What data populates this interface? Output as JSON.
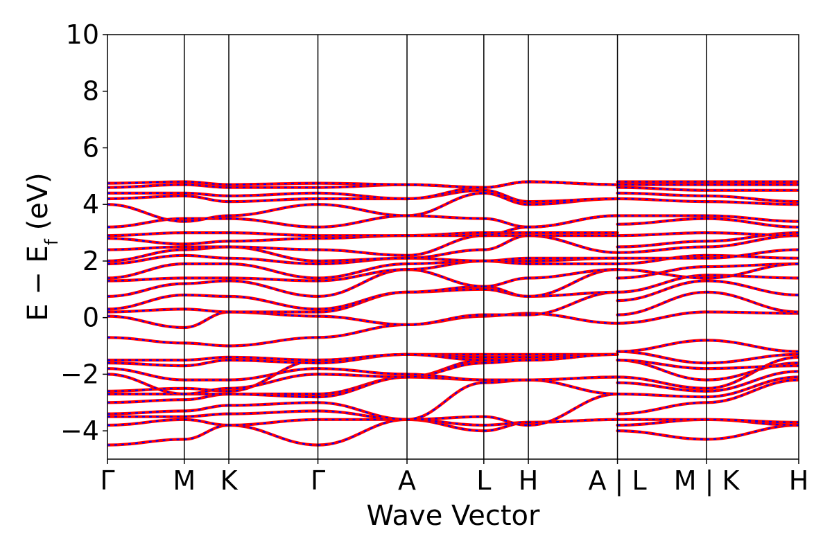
{
  "chart_data": {
    "type": "line",
    "title": "",
    "xlabel": "Wave Vector",
    "ylabel": {
      "main": "E − E",
      "sub": "f",
      "unit": " (eV)"
    },
    "ylim": [
      -5,
      10
    ],
    "yticks": [
      {
        "value": -4,
        "label": "−4"
      },
      {
        "value": -2,
        "label": "−2"
      },
      {
        "value": 0,
        "label": "0"
      },
      {
        "value": 2,
        "label": "2"
      },
      {
        "value": 4,
        "label": "4"
      },
      {
        "value": 6,
        "label": "6"
      },
      {
        "value": 8,
        "label": "8"
      },
      {
        "value": 10,
        "label": "10"
      }
    ],
    "xlim": [
      0,
      9.0
    ],
    "kpoints": [
      {
        "pos": 0.0,
        "label": "Γ"
      },
      {
        "pos": 1.0,
        "label": "M"
      },
      {
        "pos": 1.58,
        "label": "K"
      },
      {
        "pos": 2.74,
        "label": "Γ"
      },
      {
        "pos": 3.9,
        "label": "A"
      },
      {
        "pos": 4.9,
        "label": "L"
      },
      {
        "pos": 5.48,
        "label": "H"
      },
      {
        "pos": 6.64,
        "label": "A | L"
      },
      {
        "pos": 7.8,
        "label": "M | K"
      },
      {
        "pos": 9.0,
        "label": "H"
      }
    ],
    "colors": {
      "series_a": "#ff0000",
      "series_b": "#0000ff",
      "axis": "#000000"
    },
    "grid": false,
    "legend": "none",
    "note_bands": "band energies (eV) sampled at each high-symmetry point",
    "segments": [
      {
        "from": 0,
        "to": 1,
        "bands": [
          [
            -4.5,
            -4.3
          ],
          [
            -3.8,
            -3.6
          ],
          [
            -3.5,
            -3.5
          ],
          [
            -3.4,
            -3.3
          ],
          [
            -3.0,
            -2.9
          ],
          [
            -2.7,
            -2.7
          ],
          [
            -2.6,
            -2.5
          ],
          [
            -2.0,
            -2.7
          ],
          [
            -1.8,
            -2.2
          ],
          [
            -1.6,
            -1.7
          ],
          [
            -1.5,
            -1.5
          ],
          [
            -0.7,
            -0.9
          ],
          [
            0.05,
            -0.35
          ],
          [
            0.2,
            0.3
          ],
          [
            0.3,
            0.8
          ],
          [
            0.75,
            1.2
          ],
          [
            1.3,
            1.4
          ],
          [
            1.4,
            1.9
          ],
          [
            1.9,
            2.2
          ],
          [
            2.0,
            2.4
          ],
          [
            2.4,
            2.5
          ],
          [
            2.8,
            2.6
          ],
          [
            2.9,
            3.0
          ],
          [
            3.2,
            3.5
          ],
          [
            4.0,
            3.4
          ],
          [
            4.2,
            4.3
          ],
          [
            4.4,
            4.4
          ],
          [
            4.6,
            4.7
          ],
          [
            4.75,
            4.8
          ]
        ]
      },
      {
        "from": 1,
        "to": 2,
        "bands": [
          [
            -4.3,
            -3.8
          ],
          [
            -3.6,
            -3.8
          ],
          [
            -3.5,
            -3.4
          ],
          [
            -3.3,
            -3.1
          ],
          [
            -2.9,
            -2.7
          ],
          [
            -2.7,
            -2.7
          ],
          [
            -2.5,
            -2.6
          ],
          [
            -2.7,
            -2.5
          ],
          [
            -2.2,
            -2.2
          ],
          [
            -1.7,
            -1.5
          ],
          [
            -1.5,
            -1.4
          ],
          [
            -0.9,
            -1.0
          ],
          [
            -0.35,
            0.2
          ],
          [
            0.3,
            0.2
          ],
          [
            0.8,
            0.75
          ],
          [
            1.2,
            1.3
          ],
          [
            1.4,
            1.4
          ],
          [
            1.9,
            1.9
          ],
          [
            2.2,
            2.1
          ],
          [
            2.4,
            2.5
          ],
          [
            2.5,
            2.5
          ],
          [
            2.6,
            2.7
          ],
          [
            3.0,
            3.0
          ],
          [
            3.5,
            3.5
          ],
          [
            3.4,
            3.6
          ],
          [
            4.3,
            4.1
          ],
          [
            4.4,
            4.3
          ],
          [
            4.7,
            4.6
          ],
          [
            4.8,
            4.7
          ]
        ]
      },
      {
        "from": 2,
        "to": 3,
        "bands": [
          [
            -3.8,
            -4.5
          ],
          [
            -3.8,
            -3.6
          ],
          [
            -3.4,
            -3.3
          ],
          [
            -3.1,
            -3.0
          ],
          [
            -2.7,
            -2.7
          ],
          [
            -2.7,
            -2.8
          ],
          [
            -2.6,
            -1.5
          ],
          [
            -2.5,
            -2.0
          ],
          [
            -2.2,
            -1.8
          ],
          [
            -1.5,
            -1.6
          ],
          [
            -1.4,
            -1.5
          ],
          [
            -1.0,
            -0.7
          ],
          [
            0.2,
            0.05
          ],
          [
            0.2,
            0.2
          ],
          [
            0.75,
            0.3
          ],
          [
            1.3,
            0.75
          ],
          [
            1.4,
            1.3
          ],
          [
            1.9,
            1.4
          ],
          [
            2.1,
            1.9
          ],
          [
            2.5,
            2.0
          ],
          [
            2.5,
            2.4
          ],
          [
            2.7,
            2.8
          ],
          [
            3.0,
            2.9
          ],
          [
            3.5,
            3.2
          ],
          [
            3.6,
            4.0
          ],
          [
            4.1,
            4.2
          ],
          [
            4.3,
            4.4
          ],
          [
            4.6,
            4.6
          ],
          [
            4.7,
            4.75
          ]
        ]
      },
      {
        "from": 3,
        "to": 4,
        "bands": [
          [
            -4.5,
            -3.6
          ],
          [
            -3.6,
            -3.6
          ],
          [
            -3.3,
            -3.6
          ],
          [
            -3.0,
            -3.6
          ],
          [
            -2.7,
            -2.1
          ],
          [
            -2.8,
            -2.1
          ],
          [
            -1.5,
            -1.3
          ],
          [
            -2.0,
            -2.1
          ],
          [
            -1.8,
            -2.0
          ],
          [
            -1.6,
            -1.3
          ],
          [
            -1.5,
            -1.3
          ],
          [
            -0.7,
            -0.25
          ],
          [
            0.05,
            -0.25
          ],
          [
            0.2,
            0.9
          ],
          [
            0.3,
            0.9
          ],
          [
            0.75,
            1.7
          ],
          [
            1.3,
            1.7
          ],
          [
            1.4,
            1.9
          ],
          [
            1.9,
            2.1
          ],
          [
            2.0,
            2.1
          ],
          [
            2.4,
            2.2
          ],
          [
            2.8,
            2.9
          ],
          [
            2.9,
            2.9
          ],
          [
            3.2,
            3.6
          ],
          [
            4.0,
            3.6
          ],
          [
            4.2,
            4.2
          ],
          [
            4.4,
            4.2
          ],
          [
            4.6,
            4.7
          ],
          [
            4.75,
            4.7
          ]
        ]
      },
      {
        "from": 4,
        "to": 5,
        "bands": [
          [
            -3.6,
            -4.0
          ],
          [
            -3.6,
            -3.8
          ],
          [
            -3.6,
            -3.5
          ],
          [
            -3.6,
            -2.3
          ],
          [
            -2.1,
            -2.2
          ],
          [
            -2.1,
            -1.5
          ],
          [
            -1.3,
            -1.3
          ],
          [
            -2.1,
            -1.6
          ],
          [
            -2.0,
            -2.2
          ],
          [
            -1.3,
            -1.4
          ],
          [
            -1.3,
            -1.5
          ],
          [
            -0.25,
            0.05
          ],
          [
            -0.25,
            0.1
          ],
          [
            0.9,
            1.0
          ],
          [
            0.9,
            1.1
          ],
          [
            1.7,
            1.1
          ],
          [
            1.7,
            2.0
          ],
          [
            1.9,
            2.0
          ],
          [
            2.1,
            2.0
          ],
          [
            2.1,
            2.4
          ],
          [
            2.2,
            2.9
          ],
          [
            2.9,
            3.0
          ],
          [
            2.9,
            2.9
          ],
          [
            3.6,
            3.5
          ],
          [
            3.6,
            4.4
          ],
          [
            4.2,
            4.5
          ],
          [
            4.2,
            4.6
          ],
          [
            4.7,
            4.6
          ],
          [
            4.7,
            4.6
          ]
        ]
      },
      {
        "from": 5,
        "to": 6,
        "bands": [
          [
            -4.0,
            -3.7
          ],
          [
            -3.8,
            -3.7
          ],
          [
            -3.5,
            -3.8
          ],
          [
            -2.3,
            -2.2
          ],
          [
            -2.2,
            -2.2
          ],
          [
            -1.5,
            -1.4
          ],
          [
            -1.3,
            -1.3
          ],
          [
            -1.6,
            -1.5
          ],
          [
            -2.2,
            -2.2
          ],
          [
            -1.4,
            -1.4
          ],
          [
            -1.5,
            -1.5
          ],
          [
            0.05,
            0.15
          ],
          [
            0.1,
            0.1
          ],
          [
            1.0,
            0.75
          ],
          [
            1.1,
            0.75
          ],
          [
            1.1,
            1.4
          ],
          [
            2.0,
            1.9
          ],
          [
            2.0,
            2.0
          ],
          [
            2.0,
            2.1
          ],
          [
            2.4,
            2.9
          ],
          [
            2.9,
            2.9
          ],
          [
            3.0,
            3.0
          ],
          [
            2.9,
            3.2
          ],
          [
            3.5,
            3.2
          ],
          [
            4.4,
            4.0
          ],
          [
            4.5,
            4.1
          ],
          [
            4.6,
            4.8
          ],
          [
            4.6,
            4.8
          ],
          [
            4.6,
            4.8
          ]
        ]
      },
      {
        "from": 6,
        "to": 7,
        "bands": [
          [
            -3.7,
            -3.6
          ],
          [
            -3.7,
            -3.6
          ],
          [
            -3.8,
            -2.7
          ],
          [
            -2.2,
            -2.7
          ],
          [
            -2.2,
            -2.1
          ],
          [
            -1.4,
            -1.3
          ],
          [
            -1.3,
            -1.3
          ],
          [
            -1.5,
            -1.3
          ],
          [
            -2.2,
            -2.1
          ],
          [
            -1.4,
            -1.3
          ],
          [
            -1.5,
            -1.3
          ],
          [
            0.15,
            -0.2
          ],
          [
            0.1,
            0.9
          ],
          [
            0.75,
            0.9
          ],
          [
            0.75,
            1.7
          ],
          [
            1.4,
            1.7
          ],
          [
            1.9,
            1.9
          ],
          [
            2.0,
            2.1
          ],
          [
            2.1,
            2.1
          ],
          [
            2.9,
            2.3
          ],
          [
            2.9,
            2.9
          ],
          [
            3.0,
            3.0
          ],
          [
            3.2,
            3.6
          ],
          [
            3.2,
            3.6
          ],
          [
            4.0,
            4.2
          ],
          [
            4.1,
            4.2
          ],
          [
            4.8,
            4.7
          ],
          [
            4.8,
            4.7
          ],
          [
            4.8,
            4.7
          ]
        ]
      },
      {
        "from": 7,
        "to": 8,
        "bands": [
          [
            -4.0,
            -4.3
          ],
          [
            -3.8,
            -3.6
          ],
          [
            -3.6,
            -3.6
          ],
          [
            -3.4,
            -3.0
          ],
          [
            -2.7,
            -2.8
          ],
          [
            -2.3,
            -2.6
          ],
          [
            -2.1,
            -2.5
          ],
          [
            -1.5,
            -2.2
          ],
          [
            -1.5,
            -1.8
          ],
          [
            -1.2,
            -1.6
          ],
          [
            -1.2,
            -0.8
          ],
          [
            -0.2,
            0.2
          ],
          [
            0.1,
            0.9
          ],
          [
            0.6,
            1.3
          ],
          [
            0.9,
            1.5
          ],
          [
            1.4,
            1.8
          ],
          [
            1.7,
            1.4
          ],
          [
            1.9,
            2.2
          ],
          [
            2.1,
            2.1
          ],
          [
            2.3,
            2.5
          ],
          [
            2.5,
            2.7
          ],
          [
            2.9,
            3.0
          ],
          [
            3.3,
            3.5
          ],
          [
            3.6,
            3.6
          ],
          [
            4.2,
            4.1
          ],
          [
            4.4,
            4.3
          ],
          [
            4.6,
            4.5
          ],
          [
            4.7,
            4.7
          ],
          [
            4.8,
            4.8
          ]
        ]
      },
      {
        "from": 8,
        "to": 9,
        "bands": [
          [
            -4.3,
            -3.8
          ],
          [
            -3.6,
            -3.8
          ],
          [
            -3.6,
            -3.7
          ],
          [
            -3.0,
            -2.2
          ],
          [
            -2.8,
            -2.1
          ],
          [
            -2.6,
            -1.9
          ],
          [
            -2.5,
            -1.4
          ],
          [
            -2.2,
            -1.6
          ],
          [
            -1.8,
            -1.7
          ],
          [
            -1.6,
            -1.3
          ],
          [
            -0.8,
            -1.2
          ],
          [
            0.2,
            0.15
          ],
          [
            0.9,
            0.2
          ],
          [
            1.3,
            0.8
          ],
          [
            1.5,
            1.4
          ],
          [
            1.8,
            1.9
          ],
          [
            1.4,
            1.9
          ],
          [
            2.2,
            2.1
          ],
          [
            2.1,
            2.4
          ],
          [
            2.5,
            2.9
          ],
          [
            2.7,
            3.0
          ],
          [
            3.0,
            2.9
          ],
          [
            3.5,
            3.2
          ],
          [
            3.6,
            3.4
          ],
          [
            4.1,
            4.0
          ],
          [
            4.3,
            4.1
          ],
          [
            4.5,
            4.5
          ],
          [
            4.7,
            4.7
          ],
          [
            4.8,
            4.8
          ]
        ]
      }
    ]
  }
}
